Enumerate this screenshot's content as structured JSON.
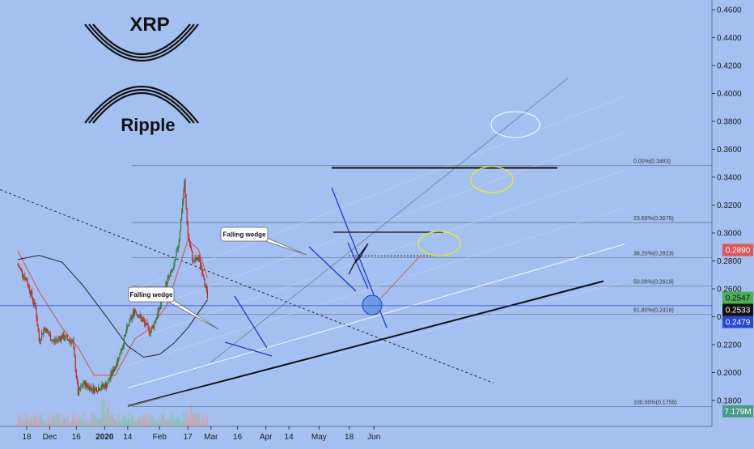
{
  "colors": {
    "background": "#a3c0f0",
    "candle_up": "#2e7d32",
    "candle_down": "#c62828",
    "ema_short": "#d05050",
    "ema_long": "#222222",
    "fib_line": "#6f7f98",
    "green_badge": "#4caf50",
    "red_badge": "#e05555",
    "blue_badge": "#2946d4",
    "black_badge": "#111111"
  },
  "logo": {
    "title": "XRP",
    "subtitle": "Ripple"
  },
  "chart_data": {
    "type": "candlestick",
    "symbol": "XRP",
    "ylim": [
      0.18,
      0.46
    ],
    "y_ticks": [
      "0.4600",
      "0.4400",
      "0.4200",
      "0.4000",
      "0.3800",
      "0.3600",
      "0.3400",
      "0.3200",
      "0.3000",
      "0.2800",
      "0.2600",
      "0.2400",
      "0.2200",
      "0.2000",
      "0.1800"
    ],
    "x_ticks": [
      "18",
      "Dec",
      "16",
      "2020",
      "14",
      "Feb",
      "17",
      "Mar",
      "16",
      "Apr",
      "14",
      "May",
      "18",
      "Jun"
    ],
    "price_series": [
      {
        "date": "Nov 13",
        "price": 0.277
      },
      {
        "date": "Nov 18",
        "price": 0.266
      },
      {
        "date": "Nov 23",
        "price": 0.246
      },
      {
        "date": "Nov 25",
        "price": 0.223
      },
      {
        "date": "Nov 28",
        "price": 0.232
      },
      {
        "date": "Dec 3",
        "price": 0.222
      },
      {
        "date": "Dec 8",
        "price": 0.226
      },
      {
        "date": "Dec 14",
        "price": 0.222
      },
      {
        "date": "Dec 17",
        "price": 0.185
      },
      {
        "date": "Dec 20",
        "price": 0.192
      },
      {
        "date": "Dec 26",
        "price": 0.188
      },
      {
        "date": "Jan 2",
        "price": 0.191
      },
      {
        "date": "Jan 7",
        "price": 0.205
      },
      {
        "date": "Jan 10",
        "price": 0.215
      },
      {
        "date": "Jan 14",
        "price": 0.233
      },
      {
        "date": "Jan 18",
        "price": 0.245
      },
      {
        "date": "Jan 23",
        "price": 0.236
      },
      {
        "date": "Jan 27",
        "price": 0.229
      },
      {
        "date": "Feb 1",
        "price": 0.246
      },
      {
        "date": "Feb 5",
        "price": 0.265
      },
      {
        "date": "Feb 9",
        "price": 0.275
      },
      {
        "date": "Feb 12",
        "price": 0.296
      },
      {
        "date": "Feb 15",
        "price": 0.336
      },
      {
        "date": "Feb 17",
        "price": 0.298
      },
      {
        "date": "Feb 20",
        "price": 0.279
      },
      {
        "date": "Feb 23",
        "price": 0.282
      },
      {
        "date": "Feb 26",
        "price": 0.269
      },
      {
        "date": "Feb 28",
        "price": 0.253
      }
    ],
    "ema_short": [
      {
        "date": "Nov 13",
        "price": 0.287
      },
      {
        "date": "Nov 25",
        "price": 0.258
      },
      {
        "date": "Dec 8",
        "price": 0.232
      },
      {
        "date": "Dec 17",
        "price": 0.218
      },
      {
        "date": "Dec 26",
        "price": 0.198
      },
      {
        "date": "Jan 7",
        "price": 0.198
      },
      {
        "date": "Jan 18",
        "price": 0.224
      },
      {
        "date": "Jan 27",
        "price": 0.232
      },
      {
        "date": "Feb 5",
        "price": 0.248
      },
      {
        "date": "Feb 12",
        "price": 0.275
      },
      {
        "date": "Feb 17",
        "price": 0.295
      },
      {
        "date": "Feb 23",
        "price": 0.288
      },
      {
        "date": "Feb 28",
        "price": 0.268
      }
    ],
    "ema_long": [
      {
        "date": "Nov 13",
        "price": 0.281
      },
      {
        "date": "Nov 25",
        "price": 0.284
      },
      {
        "date": "Dec 8",
        "price": 0.279
      },
      {
        "date": "Dec 20",
        "price": 0.262
      },
      {
        "date": "Jan 2",
        "price": 0.24
      },
      {
        "date": "Jan 14",
        "price": 0.219
      },
      {
        "date": "Jan 23",
        "price": 0.211
      },
      {
        "date": "Feb 1",
        "price": 0.213
      },
      {
        "date": "Feb 9",
        "price": 0.221
      },
      {
        "date": "Feb 17",
        "price": 0.232
      },
      {
        "date": "Feb 23",
        "price": 0.243
      },
      {
        "date": "Feb 28",
        "price": 0.252
      }
    ],
    "fib_levels": [
      {
        "label": "0.00%(0.3483)",
        "price": 0.3483
      },
      {
        "label": "23.60%(0.3075)",
        "price": 0.3075
      },
      {
        "label": "38.20%(0.2823)",
        "price": 0.2823
      },
      {
        "label": "50.00%(0.2619)",
        "price": 0.2619
      },
      {
        "label": "61.80%(0.2416)",
        "price": 0.2416
      },
      {
        "label": "100.00%(0.1756)",
        "price": 0.1756
      }
    ],
    "price_badges": [
      {
        "label": "0.2890",
        "price": 0.289,
        "color": "red"
      },
      {
        "label": "0.2547",
        "price": 0.2547,
        "color": "green"
      },
      {
        "label": "0.2533",
        "price": 0.2533,
        "color": "black"
      },
      {
        "label": "0.2479",
        "price": 0.2479,
        "color": "blue"
      }
    ],
    "volume_badge": "7.179M",
    "annotations": [
      "Falling wedge",
      "Falling wedge"
    ],
    "grid": false
  }
}
